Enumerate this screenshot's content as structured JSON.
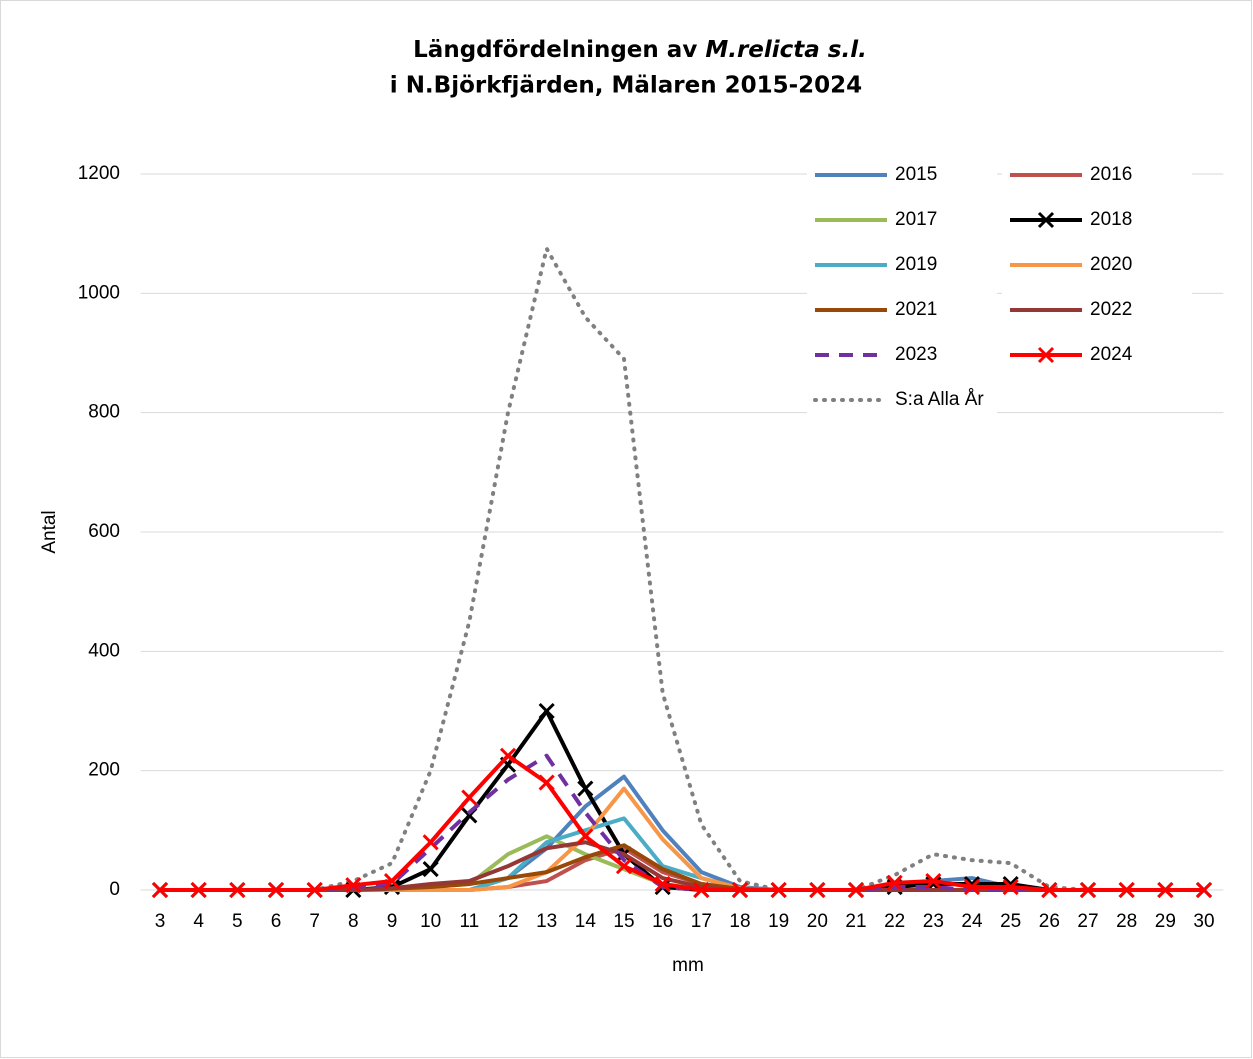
{
  "chart_data": {
    "type": "line",
    "title": [
      [
        "Längdfördelningen av ",
        "M.relicta s.l."
      ],
      [
        "i N.Björkfjärden, Mälaren 2015-2024"
      ]
    ],
    "x_label": "mm",
    "y_label": "Antal",
    "categories": [
      3,
      4,
      5,
      6,
      7,
      8,
      9,
      10,
      11,
      12,
      13,
      14,
      15,
      16,
      17,
      18,
      19,
      20,
      21,
      22,
      23,
      24,
      25,
      26,
      27,
      28,
      29,
      30
    ],
    "ylim": [
      0,
      1200
    ],
    "yticks": [
      0,
      200,
      400,
      600,
      800,
      1000,
      1200
    ],
    "grid": true,
    "legend": "upper right",
    "series": [
      {
        "name": "2015",
        "color": "#4f81bd",
        "values": [
          0,
          0,
          0,
          0,
          0,
          0,
          0,
          0,
          0,
          20,
          70,
          140,
          190,
          100,
          30,
          5,
          0,
          0,
          0,
          10,
          15,
          20,
          5,
          0,
          0,
          0,
          0,
          0
        ]
      },
      {
        "name": "2016",
        "color": "#c0504d",
        "values": [
          0,
          0,
          0,
          0,
          0,
          0,
          0,
          0,
          0,
          5,
          15,
          50,
          70,
          30,
          10,
          2,
          0,
          0,
          0,
          0,
          0,
          0,
          0,
          0,
          0,
          0,
          0,
          0
        ]
      },
      {
        "name": "2017",
        "color": "#9bbb59",
        "values": [
          0,
          0,
          0,
          0,
          0,
          0,
          0,
          5,
          10,
          60,
          90,
          60,
          35,
          10,
          2,
          0,
          0,
          0,
          0,
          0,
          0,
          0,
          0,
          0,
          0,
          0,
          0,
          0
        ]
      },
      {
        "name": "2018",
        "color": "#000000",
        "marker": "x",
        "values": [
          0,
          0,
          0,
          0,
          0,
          0,
          5,
          35,
          125,
          210,
          300,
          170,
          60,
          5,
          0,
          0,
          0,
          0,
          0,
          5,
          10,
          10,
          10,
          0,
          0,
          0,
          0,
          0
        ]
      },
      {
        "name": "2019",
        "color": "#4bacc6",
        "values": [
          0,
          0,
          0,
          0,
          0,
          0,
          0,
          0,
          0,
          20,
          80,
          100,
          120,
          40,
          20,
          2,
          0,
          0,
          0,
          0,
          0,
          0,
          0,
          0,
          0,
          0,
          0,
          0
        ]
      },
      {
        "name": "2020",
        "color": "#f79646",
        "values": [
          0,
          0,
          0,
          0,
          0,
          0,
          0,
          0,
          0,
          5,
          30,
          90,
          170,
          85,
          20,
          3,
          0,
          0,
          0,
          0,
          0,
          0,
          0,
          0,
          0,
          0,
          0,
          0
        ]
      },
      {
        "name": "2021",
        "color": "#984807",
        "values": [
          0,
          0,
          0,
          0,
          0,
          0,
          2,
          5,
          10,
          20,
          30,
          55,
          75,
          35,
          10,
          2,
          0,
          0,
          0,
          0,
          0,
          0,
          0,
          0,
          0,
          0,
          0,
          0
        ]
      },
      {
        "name": "2022",
        "color": "#953735",
        "values": [
          0,
          0,
          0,
          0,
          0,
          0,
          3,
          10,
          15,
          40,
          70,
          80,
          60,
          20,
          5,
          0,
          0,
          0,
          0,
          0,
          0,
          0,
          0,
          0,
          0,
          0,
          0,
          0
        ]
      },
      {
        "name": "2023",
        "color": "#7030a0",
        "dash": "dash",
        "values": [
          0,
          0,
          0,
          0,
          0,
          5,
          10,
          70,
          130,
          185,
          225,
          130,
          50,
          5,
          0,
          0,
          0,
          0,
          0,
          5,
          5,
          0,
          0,
          0,
          0,
          0,
          0,
          0
        ]
      },
      {
        "name": "2024",
        "color": "#ff0000",
        "marker": "x",
        "values": [
          0,
          0,
          0,
          0,
          0,
          8,
          15,
          80,
          155,
          225,
          180,
          90,
          40,
          10,
          0,
          0,
          0,
          0,
          0,
          12,
          15,
          5,
          5,
          0,
          0,
          0,
          0,
          0
        ]
      },
      {
        "name": "S:a Alla År",
        "color": "#808080",
        "dash": "dot",
        "values": [
          0,
          0,
          0,
          0,
          0,
          15,
          45,
          200,
          450,
          800,
          1075,
          960,
          890,
          330,
          110,
          15,
          0,
          0,
          0,
          25,
          60,
          50,
          45,
          5,
          0,
          0,
          0,
          0
        ]
      }
    ]
  }
}
